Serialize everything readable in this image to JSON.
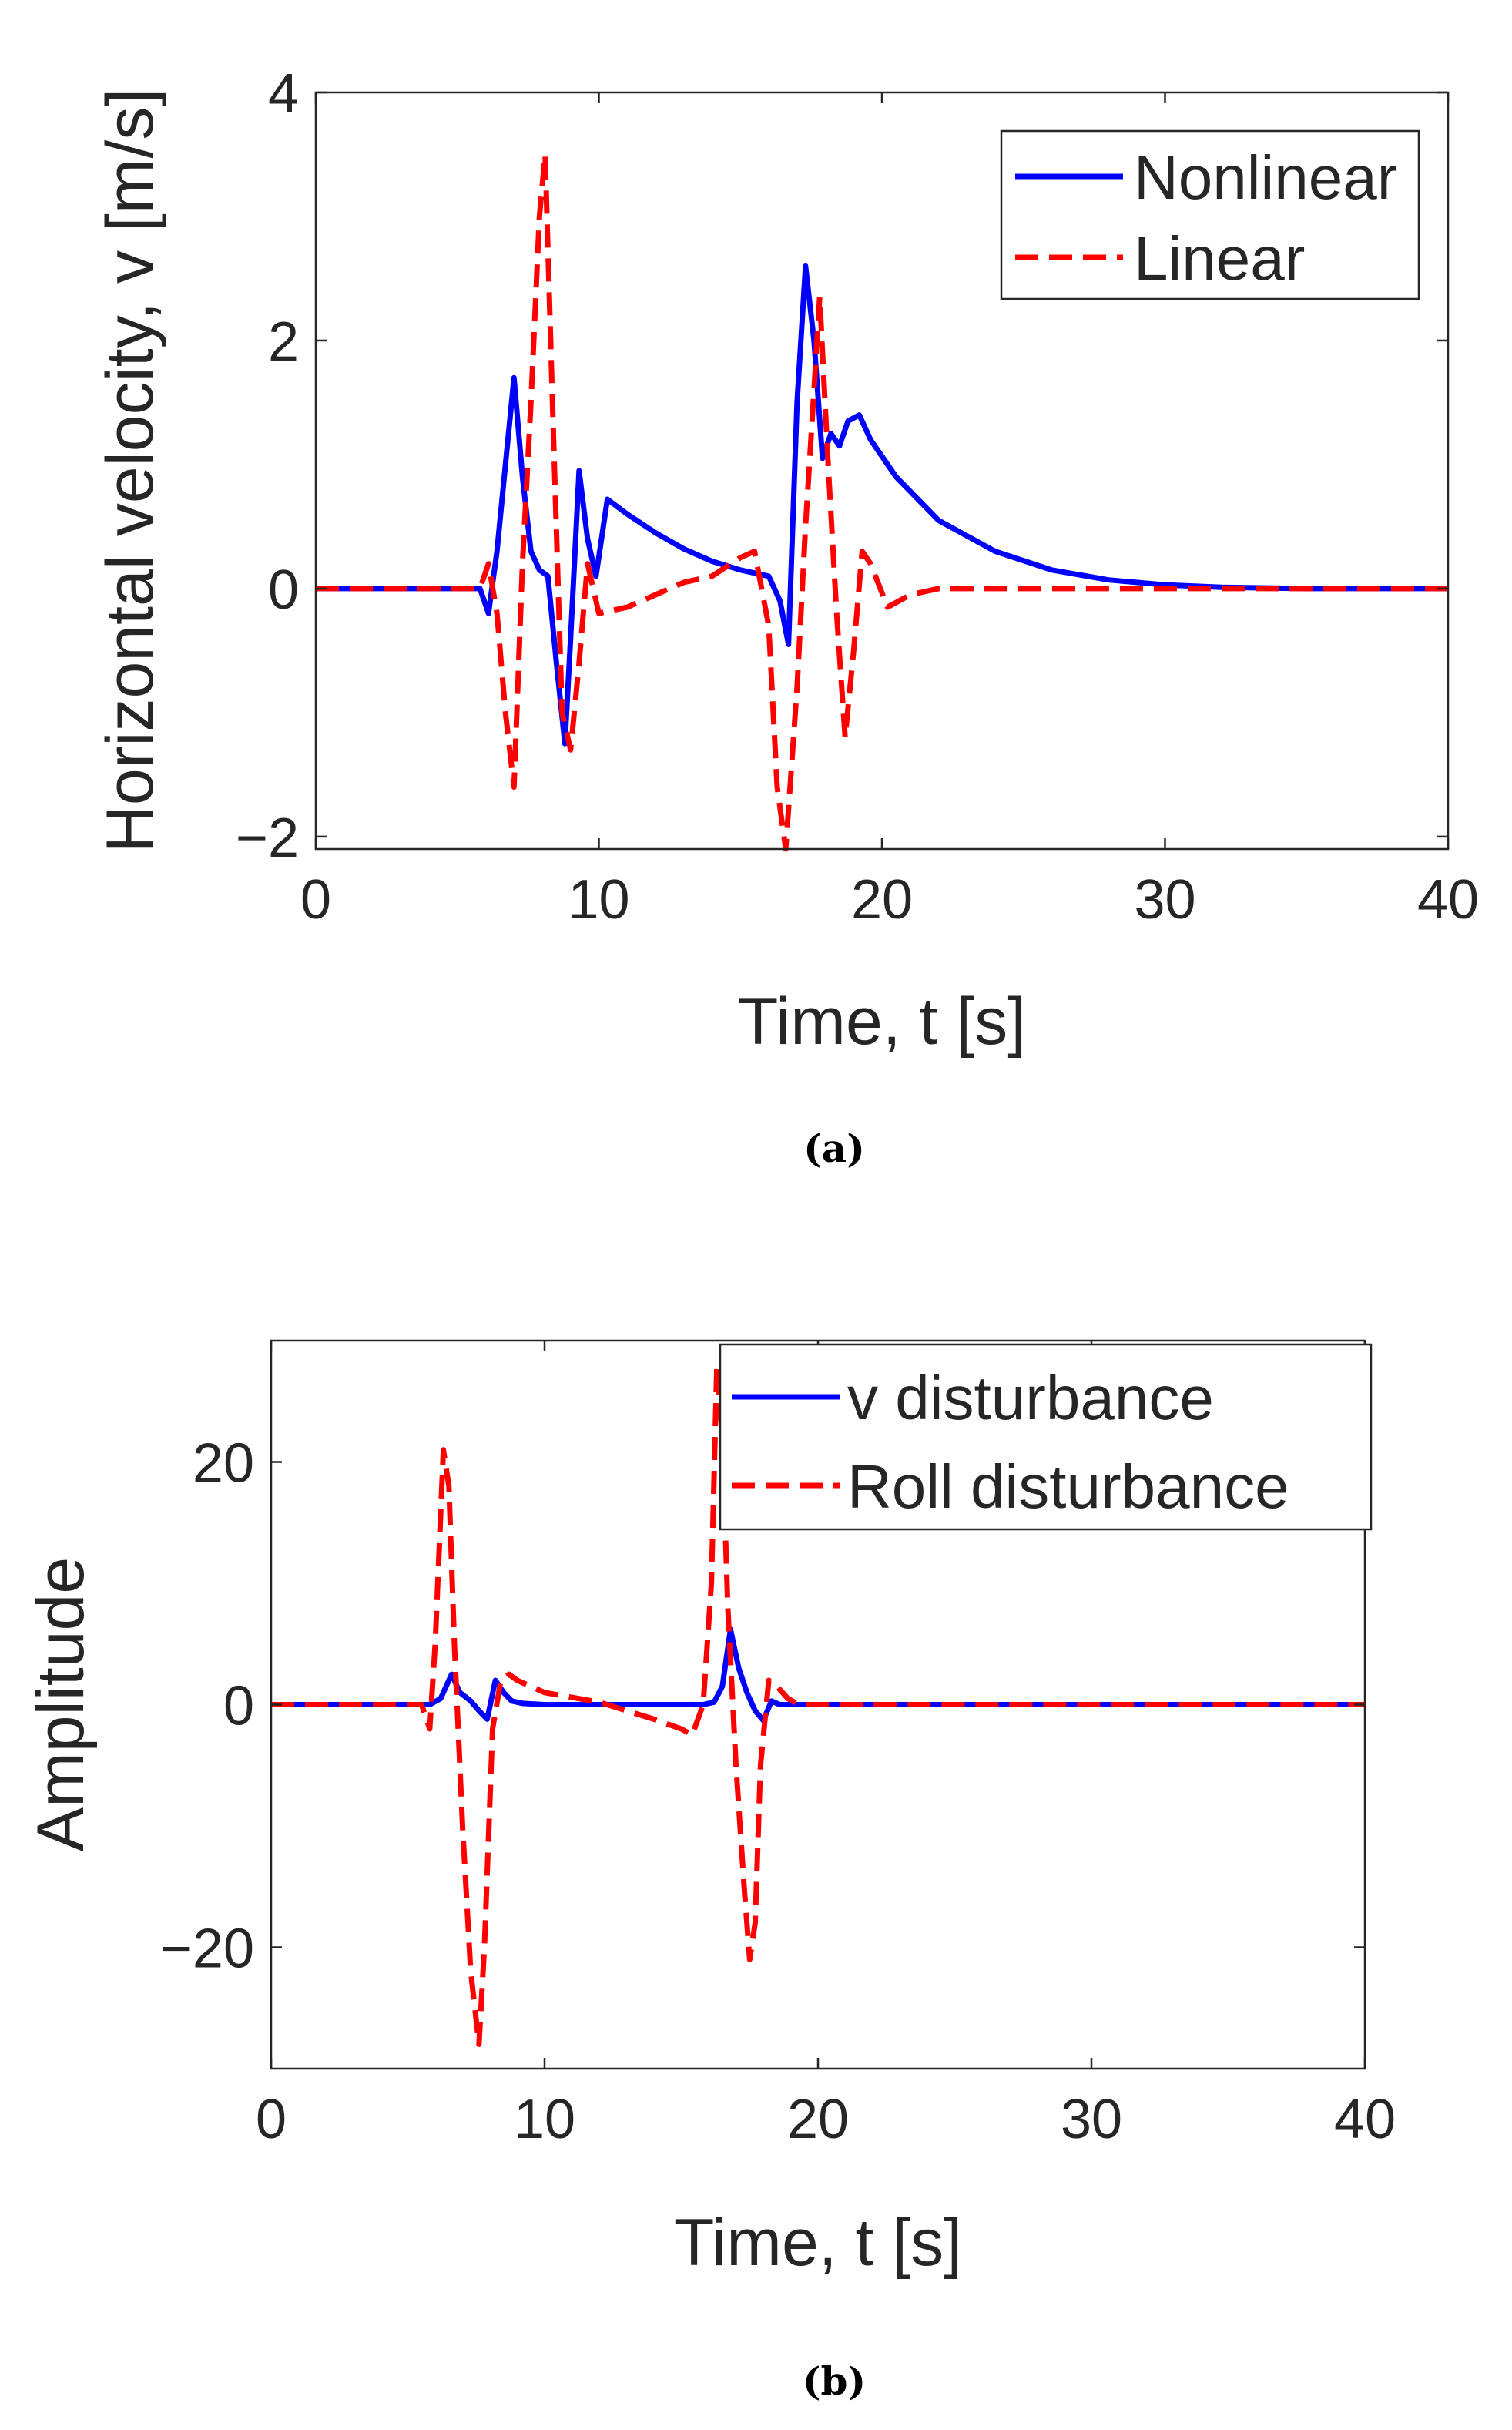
{
  "chart_data": [
    {
      "type": "line",
      "caption": "(a)",
      "xlabel": "Time, t [s]",
      "ylabel": "Horizontal velocity, v [m/s]",
      "xlim": [
        0,
        40
      ],
      "ylim": [
        -2.1,
        4
      ],
      "xticks": [
        0,
        10,
        20,
        30,
        40
      ],
      "yticks": [
        -2,
        0,
        2,
        4
      ],
      "ytick_labels": [
        "−2",
        "0",
        "2",
        "4"
      ],
      "legend_position": "top-right",
      "series": [
        {
          "name": "Nonlinear",
          "color": "#0000ff",
          "style": "solid",
          "x": [
            0,
            5.8,
            6.1,
            6.4,
            6.7,
            7.0,
            7.3,
            7.6,
            7.9,
            8.2,
            8.5,
            8.8,
            9.0,
            9.3,
            9.6,
            9.9,
            10.3,
            11,
            12,
            13,
            14,
            15,
            16,
            16.4,
            16.7,
            17.0,
            17.3,
            17.6,
            17.9,
            18.2,
            18.5,
            18.8,
            19.2,
            19.6,
            20.5,
            22,
            24,
            26,
            28,
            30,
            32,
            35,
            40
          ],
          "y": [
            0,
            0,
            -0.2,
            0.3,
            1.0,
            1.7,
            0.9,
            0.3,
            0.15,
            0.1,
            -0.6,
            -1.25,
            -0.4,
            0.95,
            0.4,
            0.1,
            0.72,
            0.6,
            0.45,
            0.32,
            0.22,
            0.15,
            0.1,
            -0.1,
            -0.45,
            1.5,
            2.6,
            2.0,
            1.05,
            1.25,
            1.15,
            1.35,
            1.4,
            1.2,
            0.9,
            0.55,
            0.3,
            0.15,
            0.07,
            0.03,
            0.01,
            0,
            0
          ]
        },
        {
          "name": "Linear",
          "color": "#ff0000",
          "style": "dashed",
          "x": [
            0,
            5.8,
            6.1,
            6.4,
            6.7,
            7.0,
            7.3,
            7.6,
            7.9,
            8.1,
            8.4,
            8.7,
            9.0,
            9.3,
            9.6,
            10.0,
            11,
            12,
            13,
            14,
            15,
            15.5,
            16.0,
            16.3,
            16.6,
            17.0,
            17.3,
            17.6,
            17.8,
            18.1,
            18.4,
            18.7,
            19.0,
            19.3,
            19.6,
            20.2,
            21,
            22,
            25,
            40
          ],
          "y": [
            0,
            0,
            0.2,
            -0.2,
            -1.0,
            -1.6,
            0.2,
            1.5,
            3.0,
            3.5,
            1.2,
            -1.0,
            -1.3,
            -0.6,
            0.2,
            -0.2,
            -0.15,
            -0.05,
            0.05,
            0.1,
            0.25,
            0.3,
            -0.3,
            -1.6,
            -2.1,
            -0.8,
            0.5,
            1.6,
            2.35,
            1.0,
            -0.2,
            -1.2,
            -0.5,
            0.3,
            0.2,
            -0.15,
            -0.05,
            0,
            0,
            0
          ]
        }
      ]
    },
    {
      "type": "line",
      "caption": "(b)",
      "xlabel": "Time, t [s]",
      "ylabel": "Amplitude",
      "xlim": [
        0,
        40
      ],
      "ylim": [
        -30,
        30
      ],
      "xticks": [
        0,
        10,
        20,
        30,
        40
      ],
      "yticks": [
        -20,
        0,
        20
      ],
      "ytick_labels": [
        "−20",
        "0",
        "20"
      ],
      "legend_position": "top-right",
      "series": [
        {
          "name": "v disturbance",
          "color": "#0000ff",
          "style": "solid",
          "x": [
            0,
            5.8,
            6.2,
            6.6,
            6.9,
            7.3,
            7.6,
            7.9,
            8.2,
            8.5,
            8.8,
            9.2,
            10,
            15,
            15.8,
            16.2,
            16.5,
            16.8,
            17.1,
            17.4,
            17.7,
            18.0,
            18.3,
            18.6,
            19,
            20,
            40
          ],
          "y": [
            0,
            0,
            0.5,
            2.5,
            1.0,
            0.3,
            -0.5,
            -1.2,
            2.0,
            1.0,
            0.3,
            0.1,
            0,
            0,
            0,
            0.2,
            1.5,
            6.2,
            3.0,
            1.0,
            -0.5,
            -1.3,
            0.3,
            0,
            0,
            0,
            0
          ]
        },
        {
          "name": "Roll disturbance",
          "color": "#ff0000",
          "style": "dashed",
          "x": [
            0,
            5.5,
            5.8,
            6.0,
            6.3,
            6.5,
            6.7,
            7.0,
            7.3,
            7.6,
            7.8,
            8.1,
            8.4,
            8.7,
            9.0,
            9.5,
            10,
            11,
            12,
            13,
            14,
            15,
            15.4,
            15.8,
            16.1,
            16.3,
            16.5,
            16.7,
            17.0,
            17.3,
            17.5,
            17.7,
            17.9,
            18.2,
            18.5,
            18.9,
            19.3,
            20,
            40
          ],
          "y": [
            0,
            0,
            -2,
            5,
            21,
            18,
            5,
            -10,
            -22,
            -28,
            -20,
            -2,
            2,
            2.5,
            2,
            1.5,
            1.0,
            0.6,
            0.2,
            -0.5,
            -1.2,
            -2,
            -2.5,
            0,
            10,
            28,
            22,
            8,
            -5,
            -15,
            -21,
            -18,
            -5,
            2,
            1.5,
            0.5,
            0,
            0,
            0
          ]
        }
      ]
    }
  ]
}
